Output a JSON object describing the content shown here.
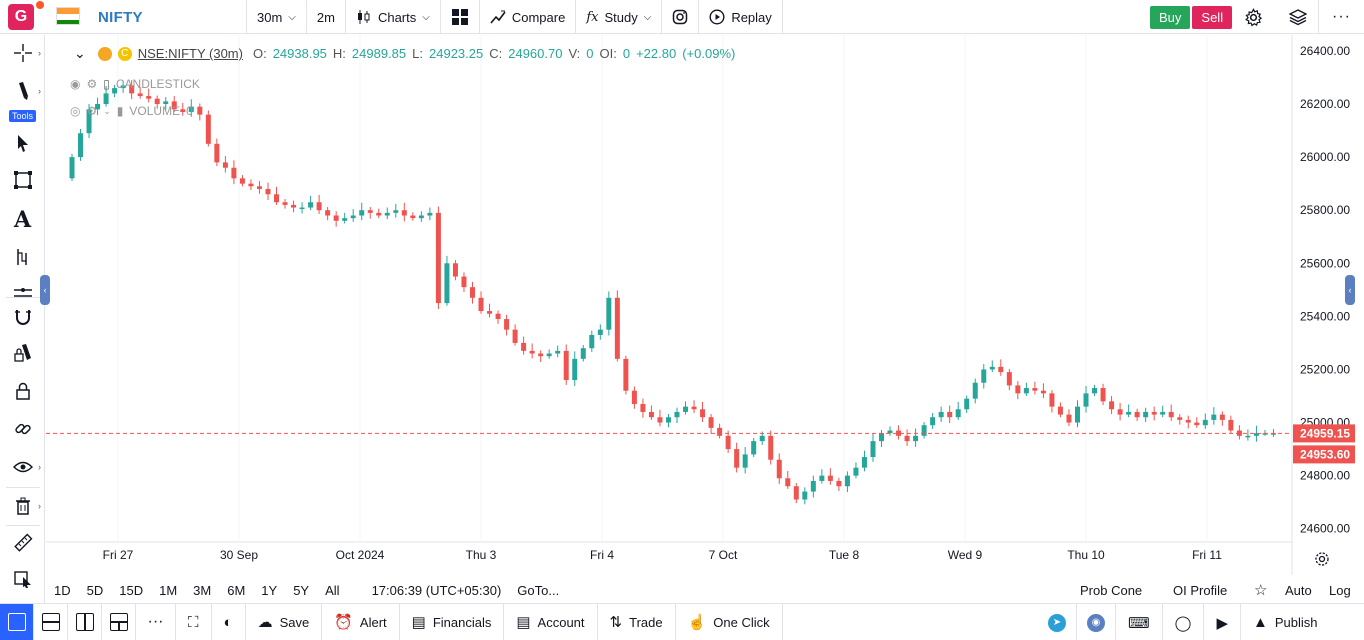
{
  "topbar": {
    "avatar_letter": "G",
    "symbol": "NIFTY",
    "interval": "30m",
    "interval_alt": "2m",
    "charts_label": "Charts",
    "compare_label": "Compare",
    "study_label": "Study",
    "replay_label": "Replay",
    "buy_label": "Buy",
    "sell_label": "Sell",
    "colors": {
      "buy": "#26a65b",
      "sell": "#e0245e",
      "symbol": "#2a7bc4"
    }
  },
  "left_toolbar": {
    "tools_badge": "Tools",
    "icons": [
      "crosshair-icon",
      "pencil-icon",
      "cursor-icon",
      "rectangle-icon",
      "text-icon",
      "measure-icon",
      "lines-icon",
      "magnet-icon",
      "lock-drawing-icon",
      "lock-icon",
      "link-icon",
      "eye-icon",
      "trash-icon",
      "ruler-icon",
      "screenshot-icon"
    ]
  },
  "legend": {
    "symbol_label": "NSE:NIFTY (30m)",
    "o_label": "O:",
    "o": "24938.95",
    "h_label": "H:",
    "h": "24989.85",
    "l_label": "L:",
    "l": "24923.25",
    "c_label": "C:",
    "c": "24960.70",
    "v_label": "V:",
    "v": "0",
    "oi_label": "OI:",
    "oi": "0",
    "change": "+22.80",
    "change_pct": "(+0.09%)",
    "indicator1": "CANDLESTICK",
    "indicator2": "VOLUME",
    "indicator2_value": "0"
  },
  "chart_data": {
    "type": "candlestick",
    "yaxis_ticks": [
      "26400.00",
      "26200.00",
      "26000.00",
      "25800.00",
      "25600.00",
      "25400.00",
      "25200.00",
      "25000.00",
      "24800.00",
      "24600.00"
    ],
    "ylim": [
      24550,
      26460
    ],
    "xaxis_ticks": [
      "Fri 27",
      "30 Sep",
      "Oct 2024",
      "Thu 3",
      "Fri 4",
      "7 Oct",
      "Tue 8",
      "Wed 9",
      "Thu 10",
      "Fri 11"
    ],
    "last_price": "24959.15",
    "second_price": "24953.60",
    "price_line": 24959.15,
    "colors": {
      "up": "#26a69a",
      "down": "#ef5350"
    },
    "closes": [
      26000,
      26090,
      26180,
      26200,
      26240,
      26260,
      26270,
      26240,
      26230,
      26220,
      26200,
      26210,
      26180,
      26170,
      26190,
      26160,
      26050,
      25980,
      25960,
      25920,
      25900,
      25890,
      25880,
      25860,
      25830,
      25820,
      25810,
      25810,
      25830,
      25800,
      25780,
      25760,
      25770,
      25780,
      25800,
      25790,
      25780,
      25790,
      25800,
      25780,
      25770,
      25780,
      25790,
      25450,
      25600,
      25550,
      25510,
      25470,
      25420,
      25410,
      25390,
      25350,
      25300,
      25270,
      25260,
      25250,
      25260,
      25270,
      25160,
      25240,
      25280,
      25330,
      25350,
      25470,
      25240,
      25120,
      25070,
      25040,
      25020,
      25000,
      25020,
      25040,
      25060,
      25050,
      25020,
      24980,
      24950,
      24900,
      24830,
      24880,
      24930,
      24950,
      24860,
      24790,
      24760,
      24710,
      24740,
      24780,
      24800,
      24780,
      24760,
      24800,
      24830,
      24870,
      24930,
      24960,
      24970,
      24950,
      24930,
      24950,
      24990,
      25020,
      25040,
      25020,
      25050,
      25090,
      25150,
      25200,
      25210,
      25190,
      25140,
      25110,
      25130,
      25120,
      25110,
      25060,
      25030,
      25000,
      25060,
      25110,
      25130,
      25080,
      25050,
      25030,
      25040,
      25020,
      25040,
      25030,
      25040,
      25020,
      25010,
      25000,
      24990,
      25010,
      25030,
      25010,
      24970,
      24950,
      24950,
      24960,
      24960,
      24960
    ]
  },
  "range_bar": {
    "ranges": [
      "1D",
      "5D",
      "15D",
      "1M",
      "3M",
      "6M",
      "1Y",
      "5Y",
      "All"
    ],
    "time": "17:06:39 (UTC+05:30)",
    "goto": "GoTo...",
    "prob_cone": "Prob Cone",
    "oi_profile": "OI Profile",
    "auto": "Auto",
    "log": "Log"
  },
  "bottom_bar": {
    "save": "Save",
    "alert": "Alert",
    "financials": "Financials",
    "account": "Account",
    "trade": "Trade",
    "one_click": "One Click",
    "publish": "Publish"
  }
}
